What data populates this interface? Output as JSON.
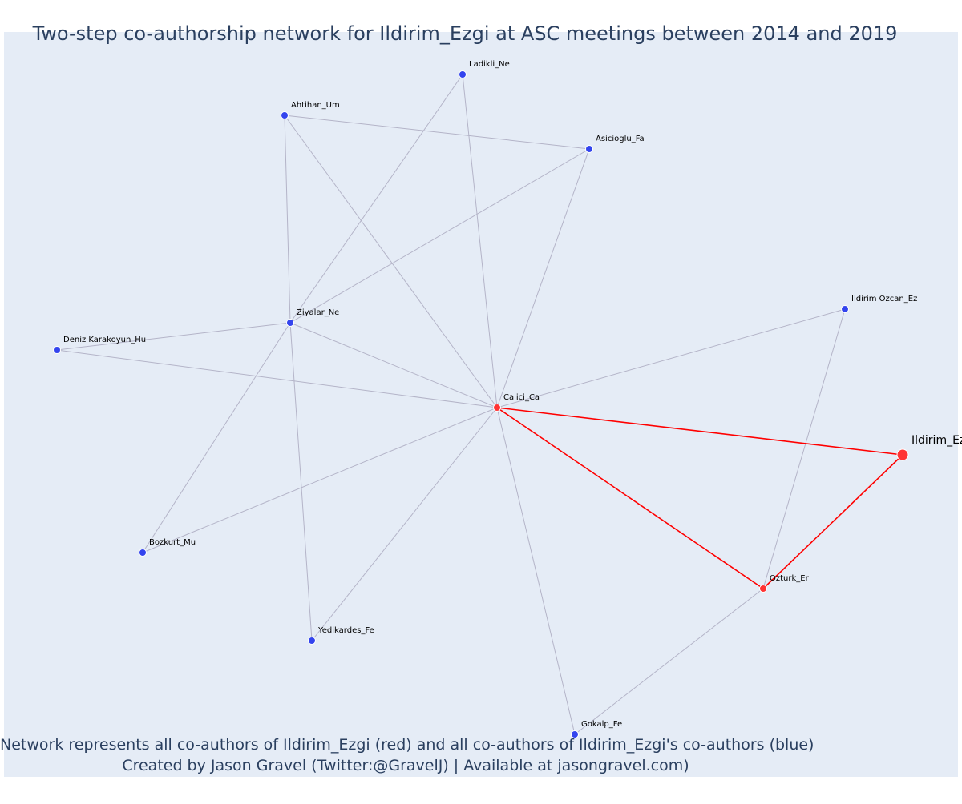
{
  "title": "Two-step co-authorship network for Ildirim_Ezgi at ASC meetings between 2014 and 2019",
  "footer": {
    "line1": "Network represents all co-authors of Ildirim_Ezgi (red) and all co-authors of Ildirim_Ezgi's co-authors (blue)",
    "line2": "Created by Jason Gravel (Twitter:@GravelJ) | Available at jasongravel.com)"
  },
  "colors": {
    "plot_bg": "#e5ecf6",
    "edge_gray": "#b4b4c8",
    "edge_red": "#ff0000",
    "node_red": "#ff3333",
    "node_blue": "#3344ee",
    "text": "#2a3f5f"
  },
  "nodes": [
    {
      "id": "Ildirim_Ezgi",
      "label": "Ildirim_Ezgi",
      "group": "focal"
    },
    {
      "id": "Calici_Ca",
      "label": "Calici_Ca",
      "group": "red"
    },
    {
      "id": "Ozturk_Er",
      "label": "Ozturk_Er",
      "group": "red"
    },
    {
      "id": "Ladikli_Ne",
      "label": "Ladikli_Ne",
      "group": "blue"
    },
    {
      "id": "Ahtihan_Um",
      "label": "Ahtihan_Um",
      "group": "blue"
    },
    {
      "id": "Asicioglu_Fa",
      "label": "Asicioglu_Fa",
      "group": "blue"
    },
    {
      "id": "Ziyalar_Ne",
      "label": "Ziyalar_Ne",
      "group": "blue"
    },
    {
      "id": "Deniz_Karakoyun_Hu",
      "label": "Deniz Karakoyun_Hu",
      "group": "blue"
    },
    {
      "id": "Ildirim_Ozcan_Ez",
      "label": "Ildirim Ozcan_Ez",
      "group": "blue"
    },
    {
      "id": "Bozkurt_Mu",
      "label": "Bozkurt_Mu",
      "group": "blue"
    },
    {
      "id": "Yedikardes_Fe",
      "label": "Yedikardes_Fe",
      "group": "blue"
    },
    {
      "id": "Gokalp_Fe",
      "label": "Gokalp_Fe",
      "group": "blue"
    }
  ],
  "edges": [
    {
      "from": "Calici_Ca",
      "to": "Ildirim_Ezgi",
      "type": "red"
    },
    {
      "from": "Calici_Ca",
      "to": "Ozturk_Er",
      "type": "red"
    },
    {
      "from": "Ozturk_Er",
      "to": "Ildirim_Ezgi",
      "type": "red"
    },
    {
      "from": "Calici_Ca",
      "to": "Ladikli_Ne",
      "type": "gray"
    },
    {
      "from": "Calici_Ca",
      "to": "Ahtihan_Um",
      "type": "gray"
    },
    {
      "from": "Calici_Ca",
      "to": "Asicioglu_Fa",
      "type": "gray"
    },
    {
      "from": "Calici_Ca",
      "to": "Ziyalar_Ne",
      "type": "gray"
    },
    {
      "from": "Calici_Ca",
      "to": "Deniz_Karakoyun_Hu",
      "type": "gray"
    },
    {
      "from": "Calici_Ca",
      "to": "Ildirim_Ozcan_Ez",
      "type": "gray"
    },
    {
      "from": "Calici_Ca",
      "to": "Bozkurt_Mu",
      "type": "gray"
    },
    {
      "from": "Calici_Ca",
      "to": "Yedikardes_Fe",
      "type": "gray"
    },
    {
      "from": "Calici_Ca",
      "to": "Gokalp_Fe",
      "type": "gray"
    },
    {
      "from": "Ahtihan_Um",
      "to": "Asicioglu_Fa",
      "type": "gray"
    },
    {
      "from": "Ahtihan_Um",
      "to": "Ziyalar_Ne",
      "type": "gray"
    },
    {
      "from": "Ziyalar_Ne",
      "to": "Ladikli_Ne",
      "type": "gray"
    },
    {
      "from": "Ziyalar_Ne",
      "to": "Asicioglu_Fa",
      "type": "gray"
    },
    {
      "from": "Ziyalar_Ne",
      "to": "Deniz_Karakoyun_Hu",
      "type": "gray"
    },
    {
      "from": "Ziyalar_Ne",
      "to": "Bozkurt_Mu",
      "type": "gray"
    },
    {
      "from": "Ziyalar_Ne",
      "to": "Yedikardes_Fe",
      "type": "gray"
    },
    {
      "from": "Ozturk_Er",
      "to": "Ildirim_Ozcan_Ez",
      "type": "gray"
    },
    {
      "from": "Ozturk_Er",
      "to": "Gokalp_Fe",
      "type": "gray"
    }
  ]
}
